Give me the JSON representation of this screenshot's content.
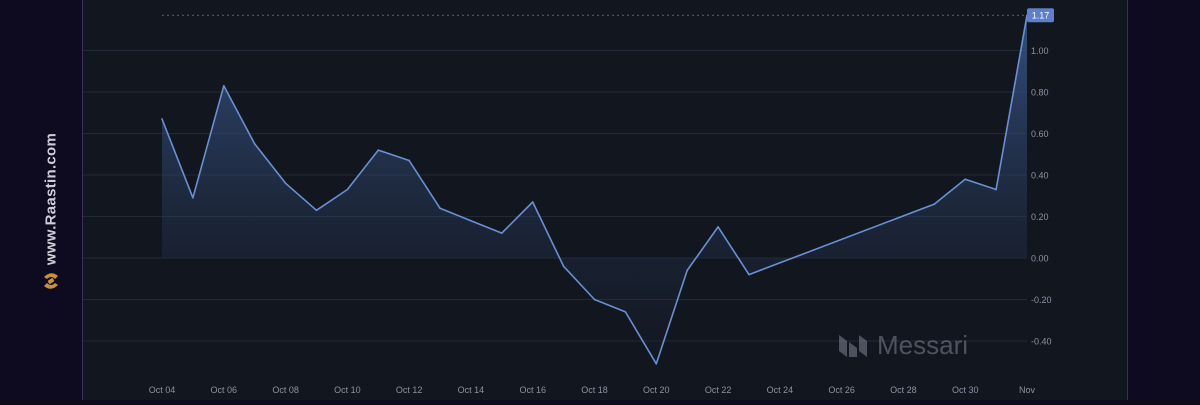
{
  "watermark": {
    "site_text": "www.Raastin.com",
    "logo_icon": "raastin-logo-icon"
  },
  "brand": {
    "name": "Messari",
    "logo_icon": "messari-logo-icon"
  },
  "colors": {
    "line": "#6b8fd4",
    "fill_top": "#3a5a8f",
    "badge_bg": "#5e7fc9",
    "grid": "#222a37",
    "axis_text": "#8b93a3",
    "panel_bg": "#12161f"
  },
  "chart_data": {
    "type": "area",
    "title": "",
    "xlabel": "",
    "ylabel": "",
    "ylim": [
      -0.6,
      1.2
    ],
    "x_range": [
      "2023-10-04",
      "2023-11-01"
    ],
    "yticks": [
      "1.00",
      "0.80",
      "0.60",
      "0.40",
      "0.20",
      "0.00",
      "-0.20",
      "-0.40"
    ],
    "xticks": [
      "Oct 04",
      "Oct 06",
      "Oct 08",
      "Oct 10",
      "Oct 12",
      "Oct 14",
      "Oct 16",
      "Oct 18",
      "Oct 20",
      "Oct 22",
      "Oct 24",
      "Oct 26",
      "Oct 28",
      "Oct 30",
      "Nov"
    ],
    "last_value_label": "1.17",
    "grid": true,
    "series": [
      {
        "x": [
          "2023-10-04",
          "2023-10-05",
          "2023-10-06",
          "2023-10-07",
          "2023-10-08",
          "2023-10-09",
          "2023-10-10",
          "2023-10-11",
          "2023-10-12",
          "2023-10-13",
          "2023-10-14",
          "2023-10-15",
          "2023-10-16",
          "2023-10-17",
          "2023-10-18",
          "2023-10-19",
          "2023-10-20",
          "2023-10-21",
          "2023-10-22",
          "2023-10-23",
          "2023-10-29",
          "2023-10-30",
          "2023-10-31",
          "2023-11-01"
        ],
        "values": [
          0.67,
          0.29,
          0.83,
          0.55,
          0.36,
          0.23,
          0.33,
          0.52,
          0.47,
          0.24,
          0.18,
          0.12,
          0.27,
          -0.04,
          -0.2,
          -0.26,
          -0.51,
          -0.06,
          0.15,
          -0.08,
          0.26,
          0.38,
          0.33,
          1.17
        ]
      }
    ]
  }
}
